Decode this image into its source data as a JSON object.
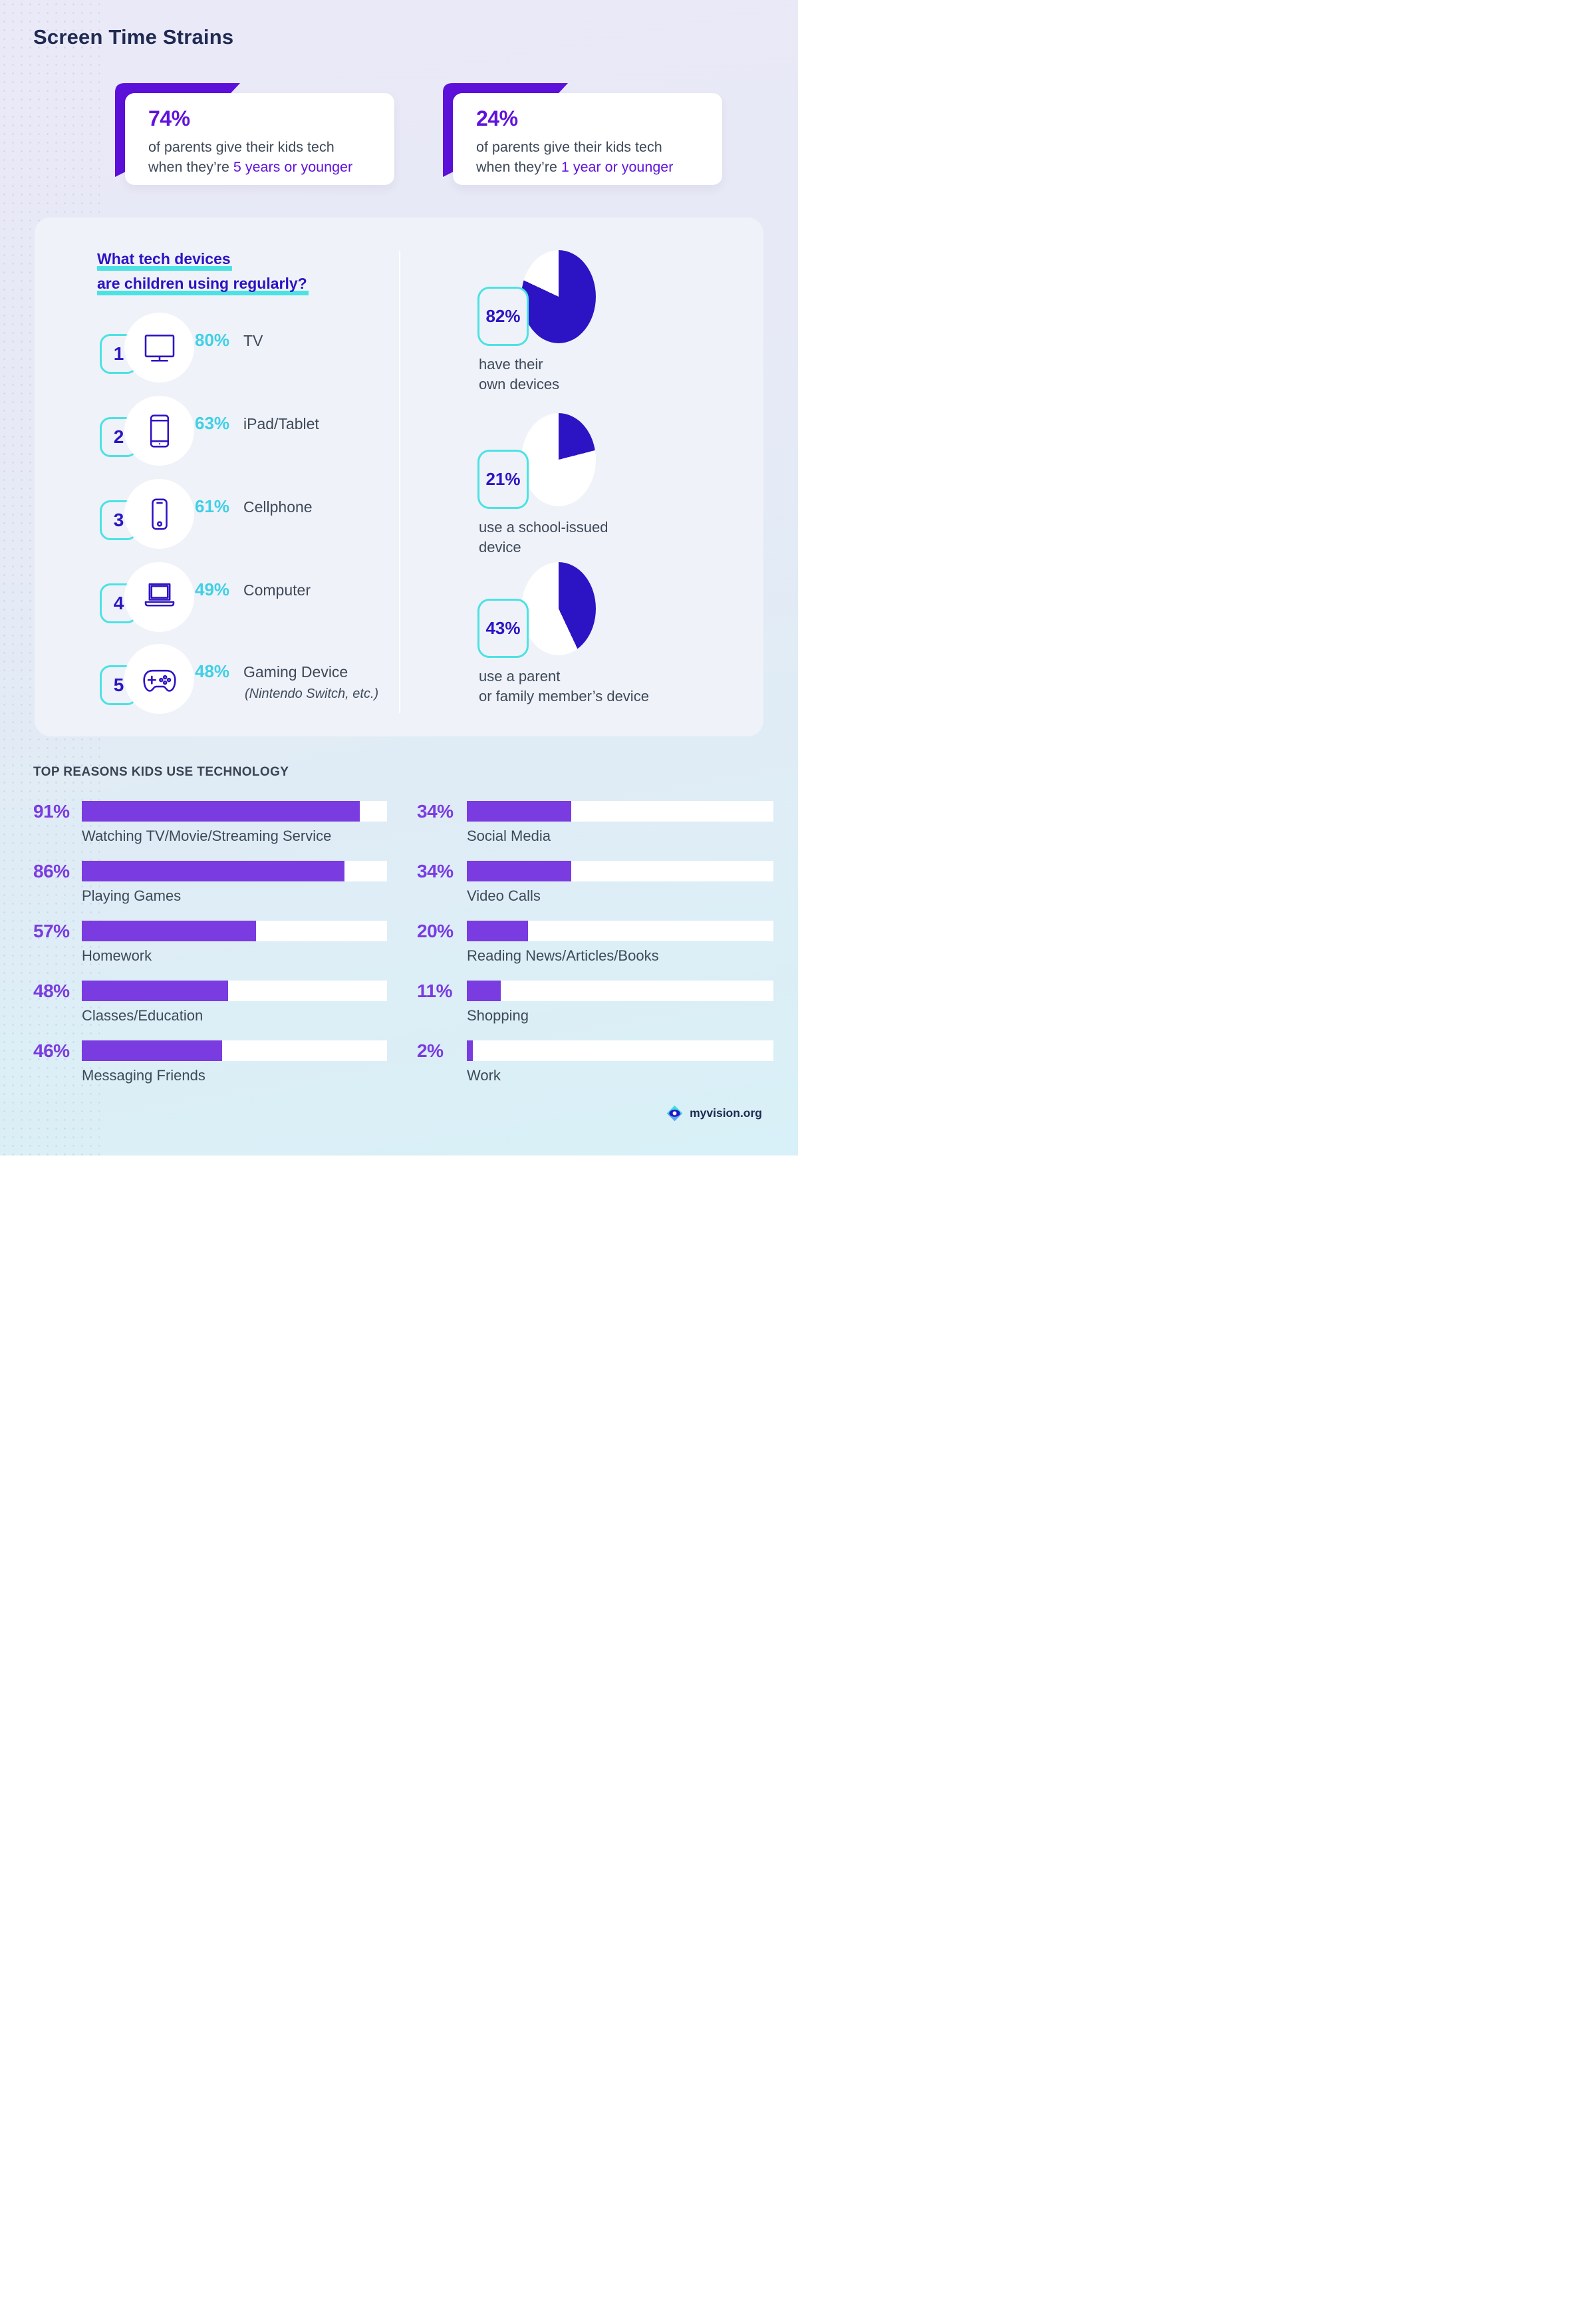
{
  "page": {
    "title": "Screen Time Strains"
  },
  "colors": {
    "navy": "#202a52",
    "slate": "#3e4959",
    "indigo": "#2c14c4",
    "ribbon_purple": "#5c10d9",
    "stat_purple": "#6013dc",
    "bar_purple": "#7a3be0",
    "cyan": "#4ce2e4",
    "cyan_text": "#3fd0e6",
    "panel_bg": "#eff2f8",
    "pie_remainder": "#ffffff"
  },
  "stat_cards": [
    {
      "value": "74%",
      "line1": "of parents give their kids tech",
      "line2_prefix": "when they’re ",
      "line2_highlight": "5 years or younger"
    },
    {
      "value": "24%",
      "line1": "of parents give their kids tech",
      "line2_prefix": "when they’re ",
      "line2_highlight": "1 year or younger"
    }
  ],
  "devices_section": {
    "heading_line1": "What tech devices",
    "heading_line2": "are children using regularly?",
    "items": [
      {
        "rank": "1",
        "icon": "tv-icon",
        "percent": "80%",
        "label": "TV"
      },
      {
        "rank": "2",
        "icon": "tablet-icon",
        "percent": "63%",
        "label": "iPad/Tablet"
      },
      {
        "rank": "3",
        "icon": "cellphone-icon",
        "percent": "61%",
        "label": "Cellphone"
      },
      {
        "rank": "4",
        "icon": "laptop-icon",
        "percent": "49%",
        "label": "Computer"
      },
      {
        "rank": "5",
        "icon": "gamepad-icon",
        "percent": "48%",
        "label": "Gaming Device",
        "note": "(Nintendo Switch, etc.)"
      }
    ],
    "pies": [
      {
        "percent_label": "82%",
        "value": 82,
        "caption_line1": "have their",
        "caption_line2": "own devices"
      },
      {
        "percent_label": "21%",
        "value": 21,
        "caption_line1": "use a school-issued",
        "caption_line2": "device"
      },
      {
        "percent_label": "43%",
        "value": 43,
        "caption_line1": "use a parent",
        "caption_line2": "or family member’s device"
      }
    ]
  },
  "reasons_section": {
    "heading": "TOP REASONS KIDS USE TECHNOLOGY",
    "left": [
      {
        "percent": "91%",
        "value": 91,
        "label": "Watching TV/Movie/Streaming Service"
      },
      {
        "percent": "86%",
        "value": 86,
        "label": "Playing Games"
      },
      {
        "percent": "57%",
        "value": 57,
        "label": "Homework"
      },
      {
        "percent": "48%",
        "value": 48,
        "label": "Classes/Education"
      },
      {
        "percent": "46%",
        "value": 46,
        "label": "Messaging Friends"
      }
    ],
    "right": [
      {
        "percent": "34%",
        "value": 34,
        "label": "Social Media"
      },
      {
        "percent": "34%",
        "value": 34,
        "label": "Video Calls"
      },
      {
        "percent": "20%",
        "value": 20,
        "label": "Reading News/Articles/Books"
      },
      {
        "percent": "11%",
        "value": 11,
        "label": "Shopping"
      },
      {
        "percent": "2%",
        "value": 2,
        "label": "Work"
      }
    ]
  },
  "footer": {
    "brand": "myvision.org",
    "logo": "eye-diamond-logo"
  },
  "chart_data": [
    {
      "type": "bar",
      "title": "TOP REASONS KIDS USE TECHNOLOGY",
      "orientation": "horizontal",
      "unit": "percent",
      "xlim": [
        0,
        100
      ],
      "grid": false,
      "layout": "two-column",
      "categories": [
        "Watching TV/Movie/Streaming Service",
        "Playing Games",
        "Homework",
        "Classes/Education",
        "Messaging Friends",
        "Social Media",
        "Video Calls",
        "Reading News/Articles/Books",
        "Shopping",
        "Work"
      ],
      "values": [
        91,
        86,
        57,
        48,
        46,
        34,
        34,
        20,
        11,
        2
      ]
    },
    {
      "type": "pie",
      "title": "have their own devices",
      "labels": [
        "have their own devices",
        "remainder"
      ],
      "values": [
        82,
        18
      ],
      "start_angle_deg": 0,
      "direction": "clockwise"
    },
    {
      "type": "pie",
      "title": "use a school-issued device",
      "labels": [
        "use a school-issued device",
        "remainder"
      ],
      "values": [
        21,
        79
      ],
      "start_angle_deg": 0,
      "direction": "clockwise"
    },
    {
      "type": "pie",
      "title": "use a parent or family member’s device",
      "labels": [
        "use a parent or family member’s device",
        "remainder"
      ],
      "values": [
        43,
        57
      ],
      "start_angle_deg": 0,
      "direction": "clockwise"
    },
    {
      "type": "table",
      "title": "What tech devices are children using regularly?",
      "columns": [
        "rank",
        "device",
        "percent"
      ],
      "rows": [
        [
          1,
          "TV",
          80
        ],
        [
          2,
          "iPad/Tablet",
          63
        ],
        [
          3,
          "Cellphone",
          61
        ],
        [
          4,
          "Computer",
          49
        ],
        [
          5,
          "Gaming Device (Nintendo Switch, etc.)",
          48
        ]
      ]
    },
    {
      "type": "table",
      "title": "Parents giving kids tech",
      "columns": [
        "statement",
        "percent"
      ],
      "rows": [
        [
          "of parents give their kids tech when they’re 5 years or younger",
          74
        ],
        [
          "of parents give their kids tech when they’re 1 year or younger",
          24
        ]
      ]
    }
  ]
}
